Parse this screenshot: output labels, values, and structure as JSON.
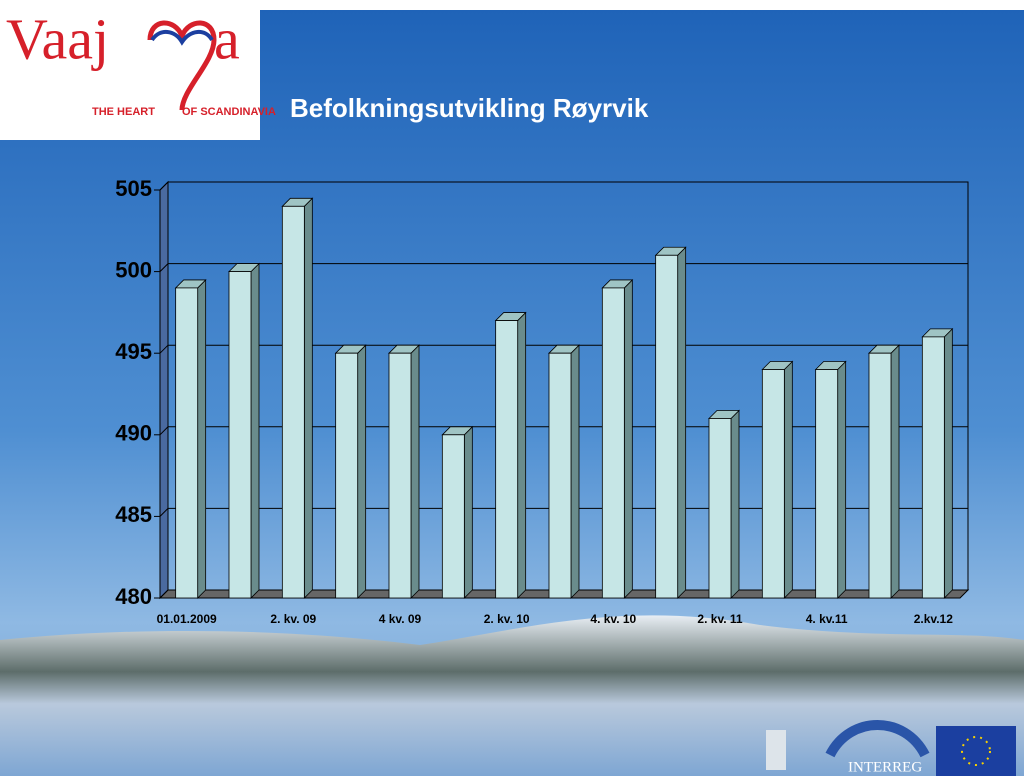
{
  "logo": {
    "name_start": "Vaaj",
    "name_end": "a",
    "tagline_left": "THE HEART",
    "tagline_right": "OF SCANDINAVIA"
  },
  "footer": {
    "interreg": "INTERREG"
  },
  "chart_data": {
    "type": "bar",
    "title": "Befolkningsutvikling Røyrvik",
    "categories": [
      "01.01.2009",
      null,
      "2. kv. 09",
      null,
      "4 kv. 09",
      null,
      "2. kv. 10",
      null,
      "4. kv. 10",
      null,
      "2. kv. 11",
      null,
      "4. kv.11",
      null,
      "2.kv.12"
    ],
    "values": [
      499,
      500,
      504,
      495,
      495,
      490,
      497,
      495,
      499,
      501,
      491,
      494,
      494,
      495,
      496
    ],
    "color": "#c6e6e6",
    "ylim": [
      480,
      505
    ],
    "yticks": [
      480,
      485,
      490,
      495,
      500,
      505
    ],
    "grid": true
  }
}
